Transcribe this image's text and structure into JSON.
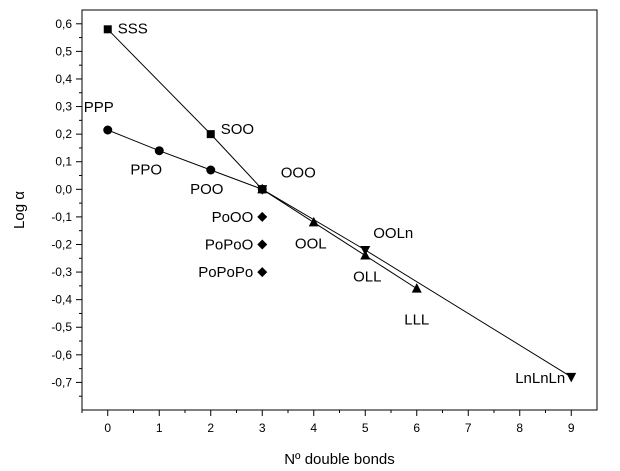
{
  "chart_data": {
    "type": "scatter",
    "xlabel": "Nº double bonds",
    "ylabel": "Log α",
    "xlim": [
      -0.5,
      9.5
    ],
    "ylim": [
      -0.8,
      0.65
    ],
    "xticks": [
      0,
      1,
      2,
      3,
      4,
      5,
      6,
      7,
      8,
      9
    ],
    "yticks": [
      0.6,
      0.5,
      0.4,
      0.3,
      0.2,
      0.1,
      0.0,
      -0.1,
      -0.2,
      -0.3,
      -0.4,
      -0.5,
      -0.6,
      -0.7
    ],
    "ytick_labels": [
      "0,6",
      "0,5",
      "0,4",
      "0,3",
      "0,2",
      "0,1",
      "0,0",
      "-0,1",
      "-0,2",
      "-0,3",
      "-0,4",
      "-0,5",
      "-0,6",
      "-0,7"
    ],
    "grid": false,
    "series": [
      {
        "marker": "square",
        "line": true,
        "points": [
          {
            "x": 0,
            "y": 0.58,
            "label": "SSS"
          },
          {
            "x": 2,
            "y": 0.2,
            "label": "SOO"
          },
          {
            "x": 3,
            "y": 0.0,
            "label": ""
          }
        ]
      },
      {
        "marker": "circle",
        "line": true,
        "points": [
          {
            "x": 0,
            "y": 0.215,
            "label": "PPP"
          },
          {
            "x": 1,
            "y": 0.14,
            "label": "PPO"
          },
          {
            "x": 2,
            "y": 0.07,
            "label": "POO"
          },
          {
            "x": 3,
            "y": 0.0,
            "label": "OOO"
          }
        ]
      },
      {
        "marker": "diamond",
        "line": false,
        "points": [
          {
            "x": 3,
            "y": -0.1,
            "label": "PoOO"
          },
          {
            "x": 3,
            "y": -0.2,
            "label": "PoPoO"
          },
          {
            "x": 3,
            "y": -0.3,
            "label": "PoPoPo"
          }
        ]
      },
      {
        "marker": "triangle-up",
        "line": true,
        "points": [
          {
            "x": 3,
            "y": 0.0,
            "label": ""
          },
          {
            "x": 4,
            "y": -0.12,
            "label": "OOL"
          },
          {
            "x": 5,
            "y": -0.24,
            "label": "OLL"
          },
          {
            "x": 6,
            "y": -0.36,
            "label": "LLL"
          }
        ]
      },
      {
        "marker": "triangle-down",
        "line": true,
        "points": [
          {
            "x": 3,
            "y": 0.0,
            "label": ""
          },
          {
            "x": 5,
            "y": -0.22,
            "label": "OOLn"
          },
          {
            "x": 9,
            "y": -0.68,
            "label": "LnLnLn"
          }
        ]
      }
    ]
  }
}
